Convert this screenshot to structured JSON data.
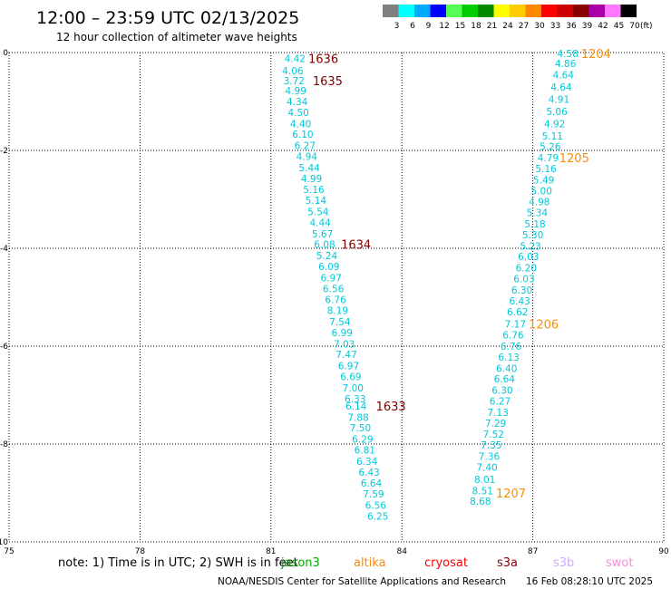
{
  "header": {
    "title": "12:00 – 23:59 UTC 02/13/2025",
    "subtitle": "12 hour collection of altimeter wave heights"
  },
  "legend": {
    "unit": "(ft)",
    "bins": [
      {
        "label": "3",
        "color": "#808080"
      },
      {
        "label": "6",
        "color": "#00ffff"
      },
      {
        "label": "9",
        "color": "#00aaff"
      },
      {
        "label": "12",
        "color": "#0000ff"
      },
      {
        "label": "15",
        "color": "#55ff55"
      },
      {
        "label": "18",
        "color": "#00cc00"
      },
      {
        "label": "21",
        "color": "#008800"
      },
      {
        "label": "24",
        "color": "#ffff00"
      },
      {
        "label": "27",
        "color": "#ffcc00"
      },
      {
        "label": "30",
        "color": "#ff8800"
      },
      {
        "label": "33",
        "color": "#ff0000"
      },
      {
        "label": "36",
        "color": "#cc0000"
      },
      {
        "label": "39",
        "color": "#880000"
      },
      {
        "label": "42",
        "color": "#aa00aa"
      },
      {
        "label": "45",
        "color": "#ff77ff"
      },
      {
        "label": "70",
        "color": "#000000"
      }
    ]
  },
  "chart_data": {
    "type": "scatter",
    "xlim": [
      75,
      90
    ],
    "ylim": [
      -10,
      0
    ],
    "x_ticks": [
      "75",
      "78",
      "81",
      "84",
      "87",
      "90"
    ],
    "y_ticks": [
      "0",
      "-2",
      "-4",
      "-6",
      "-8",
      "-10"
    ],
    "grid": true,
    "colors": {
      "swh": "#00c8d8",
      "pass_dark": "#800000",
      "pass_orange": "#ff8c00"
    },
    "tracks": [
      {
        "name": "left",
        "points": [
          {
            "x": 81.55,
            "y": -0.12,
            "v": "4.42"
          },
          {
            "x": 81.5,
            "y": -0.37,
            "v": "4.06"
          },
          {
            "x": 81.53,
            "y": -0.57,
            "v": "3.72"
          },
          {
            "x": 81.57,
            "y": -0.78,
            "v": "4.99"
          },
          {
            "x": 81.6,
            "y": -1.0,
            "v": "4.34"
          },
          {
            "x": 81.63,
            "y": -1.22,
            "v": "4.50"
          },
          {
            "x": 81.68,
            "y": -1.45,
            "v": "4.40"
          },
          {
            "x": 81.73,
            "y": -1.67,
            "v": "6.10"
          },
          {
            "x": 81.78,
            "y": -1.9,
            "v": "6.27"
          },
          {
            "x": 81.82,
            "y": -2.12,
            "v": "4.94"
          },
          {
            "x": 81.88,
            "y": -2.35,
            "v": "5.44"
          },
          {
            "x": 81.93,
            "y": -2.57,
            "v": "4.99"
          },
          {
            "x": 81.98,
            "y": -2.8,
            "v": "5.16"
          },
          {
            "x": 82.03,
            "y": -3.02,
            "v": "5.14"
          },
          {
            "x": 82.08,
            "y": -3.25,
            "v": "5.54"
          },
          {
            "x": 82.13,
            "y": -3.47,
            "v": "4.44"
          },
          {
            "x": 82.18,
            "y": -3.7,
            "v": "5.67"
          },
          {
            "x": 82.23,
            "y": -3.92,
            "v": "6.08"
          },
          {
            "x": 82.28,
            "y": -4.15,
            "v": "5.24"
          },
          {
            "x": 82.33,
            "y": -4.37,
            "v": "6.09"
          },
          {
            "x": 82.38,
            "y": -4.6,
            "v": "6.97"
          },
          {
            "x": 82.43,
            "y": -4.82,
            "v": "6.56"
          },
          {
            "x": 82.48,
            "y": -5.05,
            "v": "6.76"
          },
          {
            "x": 82.53,
            "y": -5.27,
            "v": "8.19"
          },
          {
            "x": 82.58,
            "y": -5.5,
            "v": "7.54"
          },
          {
            "x": 82.63,
            "y": -5.72,
            "v": "6.99"
          },
          {
            "x": 82.68,
            "y": -5.95,
            "v": "7.03"
          },
          {
            "x": 82.73,
            "y": -6.17,
            "v": "7.47"
          },
          {
            "x": 82.78,
            "y": -6.4,
            "v": "6.97"
          },
          {
            "x": 82.83,
            "y": -6.62,
            "v": "6.69"
          },
          {
            "x": 82.88,
            "y": -6.85,
            "v": "7.00"
          },
          {
            "x": 82.93,
            "y": -7.07,
            "v": "6.33"
          },
          {
            "x": 82.95,
            "y": -7.22,
            "v": "6.14"
          },
          {
            "x": 83.0,
            "y": -7.45,
            "v": "7.88"
          },
          {
            "x": 83.05,
            "y": -7.67,
            "v": "7.50"
          },
          {
            "x": 83.1,
            "y": -7.9,
            "v": "6.29"
          },
          {
            "x": 83.15,
            "y": -8.12,
            "v": "6.81"
          },
          {
            "x": 83.2,
            "y": -8.35,
            "v": "6.34"
          },
          {
            "x": 83.25,
            "y": -8.57,
            "v": "6.43"
          },
          {
            "x": 83.3,
            "y": -8.8,
            "v": "6.64"
          },
          {
            "x": 83.35,
            "y": -9.02,
            "v": "7.59"
          },
          {
            "x": 83.4,
            "y": -9.25,
            "v": "6.56"
          },
          {
            "x": 83.45,
            "y": -9.47,
            "v": "6.25"
          }
        ]
      },
      {
        "name": "right",
        "points": [
          {
            "x": 87.8,
            "y": -0.02,
            "v": "4.58"
          },
          {
            "x": 87.75,
            "y": -0.22,
            "v": "4.86"
          },
          {
            "x": 87.7,
            "y": -0.45,
            "v": "4.64"
          },
          {
            "x": 87.65,
            "y": -0.7,
            "v": "4.64"
          },
          {
            "x": 87.6,
            "y": -0.95,
            "v": "4.91"
          },
          {
            "x": 87.55,
            "y": -1.2,
            "v": "5.06"
          },
          {
            "x": 87.5,
            "y": -1.45,
            "v": "4.92"
          },
          {
            "x": 87.45,
            "y": -1.7,
            "v": "5.11"
          },
          {
            "x": 87.4,
            "y": -1.92,
            "v": "5.26"
          },
          {
            "x": 87.35,
            "y": -2.15,
            "v": "4.79"
          },
          {
            "x": 87.3,
            "y": -2.37,
            "v": "5.16"
          },
          {
            "x": 87.25,
            "y": -2.6,
            "v": "5.49"
          },
          {
            "x": 87.2,
            "y": -2.82,
            "v": "5.00"
          },
          {
            "x": 87.15,
            "y": -3.05,
            "v": "4.98"
          },
          {
            "x": 87.1,
            "y": -3.27,
            "v": "5.34"
          },
          {
            "x": 87.05,
            "y": -3.5,
            "v": "5.18"
          },
          {
            "x": 87.0,
            "y": -3.72,
            "v": "5.30"
          },
          {
            "x": 86.95,
            "y": -3.95,
            "v": "5.23"
          },
          {
            "x": 86.9,
            "y": -4.17,
            "v": "6.03"
          },
          {
            "x": 86.85,
            "y": -4.4,
            "v": "6.20"
          },
          {
            "x": 86.8,
            "y": -4.62,
            "v": "6.03"
          },
          {
            "x": 86.75,
            "y": -4.85,
            "v": "6.30"
          },
          {
            "x": 86.7,
            "y": -5.07,
            "v": "6.43"
          },
          {
            "x": 86.65,
            "y": -5.3,
            "v": "6.62"
          },
          {
            "x": 86.6,
            "y": -5.55,
            "v": "7.17"
          },
          {
            "x": 86.55,
            "y": -5.77,
            "v": "6.76"
          },
          {
            "x": 86.5,
            "y": -6.0,
            "v": "6.76"
          },
          {
            "x": 86.45,
            "y": -6.22,
            "v": "6.13"
          },
          {
            "x": 86.4,
            "y": -6.45,
            "v": "6.40"
          },
          {
            "x": 86.35,
            "y": -6.67,
            "v": "6.64"
          },
          {
            "x": 86.3,
            "y": -6.9,
            "v": "6.30"
          },
          {
            "x": 86.25,
            "y": -7.12,
            "v": "6.27"
          },
          {
            "x": 86.2,
            "y": -7.35,
            "v": "7.13"
          },
          {
            "x": 86.15,
            "y": -7.57,
            "v": "7.29"
          },
          {
            "x": 86.1,
            "y": -7.8,
            "v": "7.52"
          },
          {
            "x": 86.05,
            "y": -8.02,
            "v": "7.35"
          },
          {
            "x": 86.0,
            "y": -8.25,
            "v": "7.36"
          },
          {
            "x": 85.95,
            "y": -8.47,
            "v": "7.40"
          },
          {
            "x": 85.9,
            "y": -8.72,
            "v": "8.01"
          },
          {
            "x": 85.85,
            "y": -8.95,
            "v": "8.51"
          },
          {
            "x": 85.8,
            "y": -9.17,
            "v": "8.68"
          }
        ]
      }
    ],
    "pass_labels": [
      {
        "x": 82.2,
        "y": -0.12,
        "text": "1636",
        "style": "dark"
      },
      {
        "x": 82.3,
        "y": -0.57,
        "text": "1635",
        "style": "dark"
      },
      {
        "x": 82.95,
        "y": -3.92,
        "text": "1634",
        "style": "dark"
      },
      {
        "x": 83.75,
        "y": -7.22,
        "text": "1633",
        "style": "dark"
      },
      {
        "x": 88.45,
        "y": -0.02,
        "text": "1204",
        "style": "orange"
      },
      {
        "x": 87.95,
        "y": -2.15,
        "text": "1205",
        "style": "orange"
      },
      {
        "x": 87.25,
        "y": -5.55,
        "text": "1206",
        "style": "orange"
      },
      {
        "x": 86.5,
        "y": -9.0,
        "text": "1207",
        "style": "orange"
      }
    ]
  },
  "note": {
    "text": "note: 1) Time is in UTC; 2) SWH is in feet",
    "satellites": [
      {
        "name": "jason3",
        "color": "#00aa00"
      },
      {
        "name": "altika",
        "color": "#ff8800"
      },
      {
        "name": "cryosat",
        "color": "#ff0000"
      },
      {
        "name": "s3a",
        "color": "#880000"
      },
      {
        "name": "s3b",
        "color": "#ccaaff"
      },
      {
        "name": "swot",
        "color": "#ff88dd"
      }
    ]
  },
  "footer": {
    "credit": "NOAA/NESDIS Center for Satellite Applications and Research",
    "timestamp": "16 Feb 08:28:10 UTC 2025"
  }
}
